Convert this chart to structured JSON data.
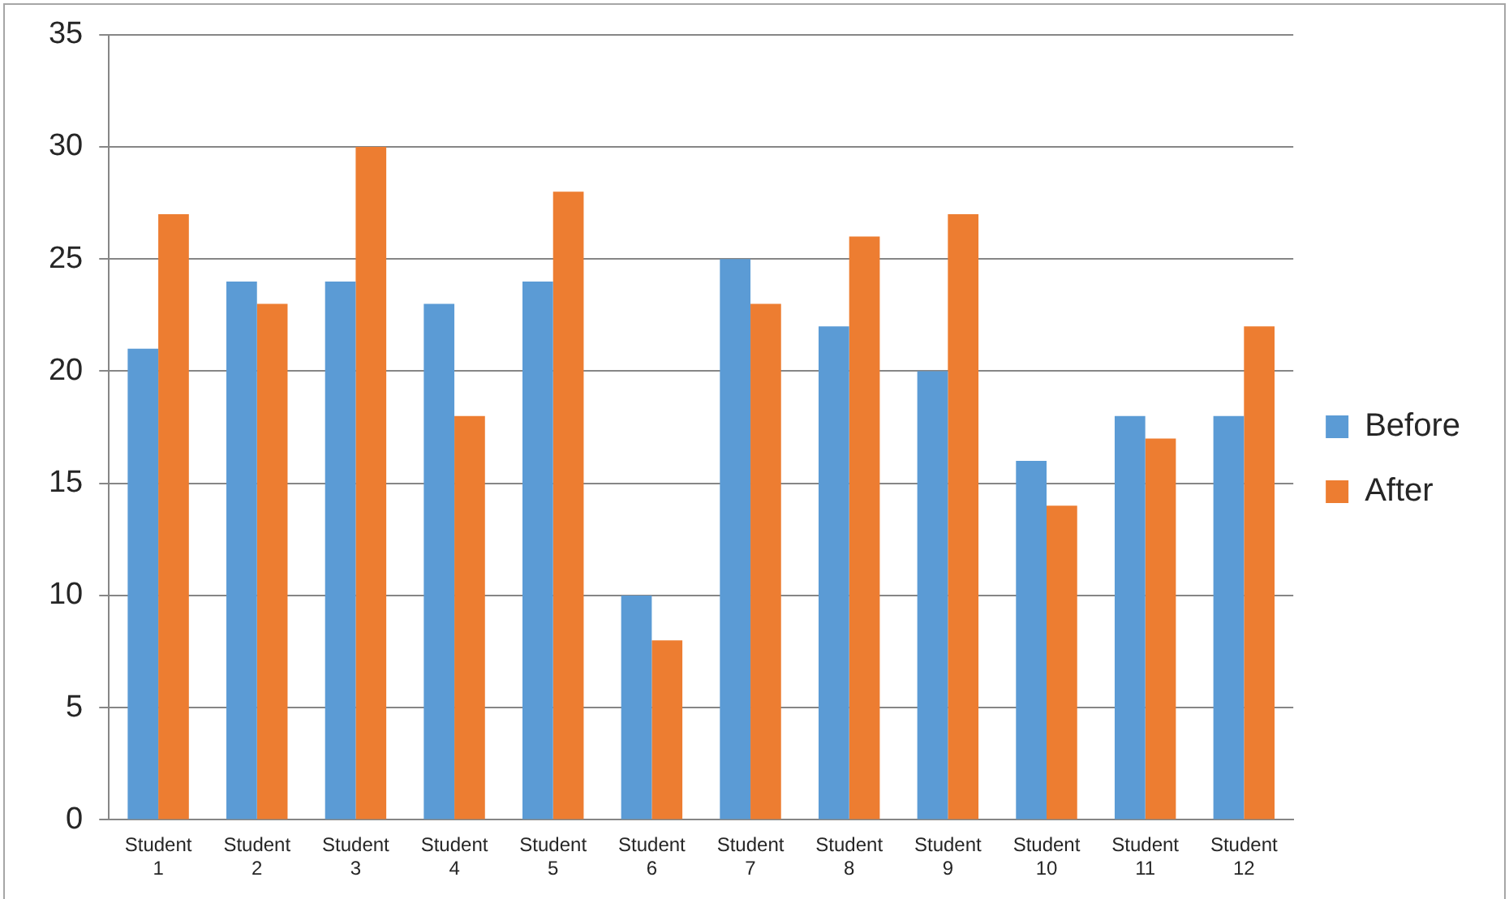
{
  "chart_data": {
    "type": "bar",
    "categories": [
      "Student 1",
      "Student 2",
      "Student 3",
      "Student 4",
      "Student 5",
      "Student 6",
      "Student 7",
      "Student 8",
      "Student 9",
      "Student 10",
      "Student 11",
      "Student 12"
    ],
    "series": [
      {
        "name": "Before",
        "color": "#5b9bd5",
        "values": [
          21,
          24,
          24,
          23,
          24,
          10,
          25,
          22,
          20,
          16,
          18,
          18
        ]
      },
      {
        "name": "After",
        "color": "#ed7d31",
        "values": [
          27,
          23,
          30,
          18,
          28,
          8,
          23,
          26,
          27,
          14,
          17,
          22
        ]
      }
    ],
    "ylim": [
      0,
      35
    ],
    "yticks": [
      0,
      5,
      10,
      15,
      20,
      25,
      30,
      35
    ],
    "grid": "y",
    "legend": "right"
  }
}
